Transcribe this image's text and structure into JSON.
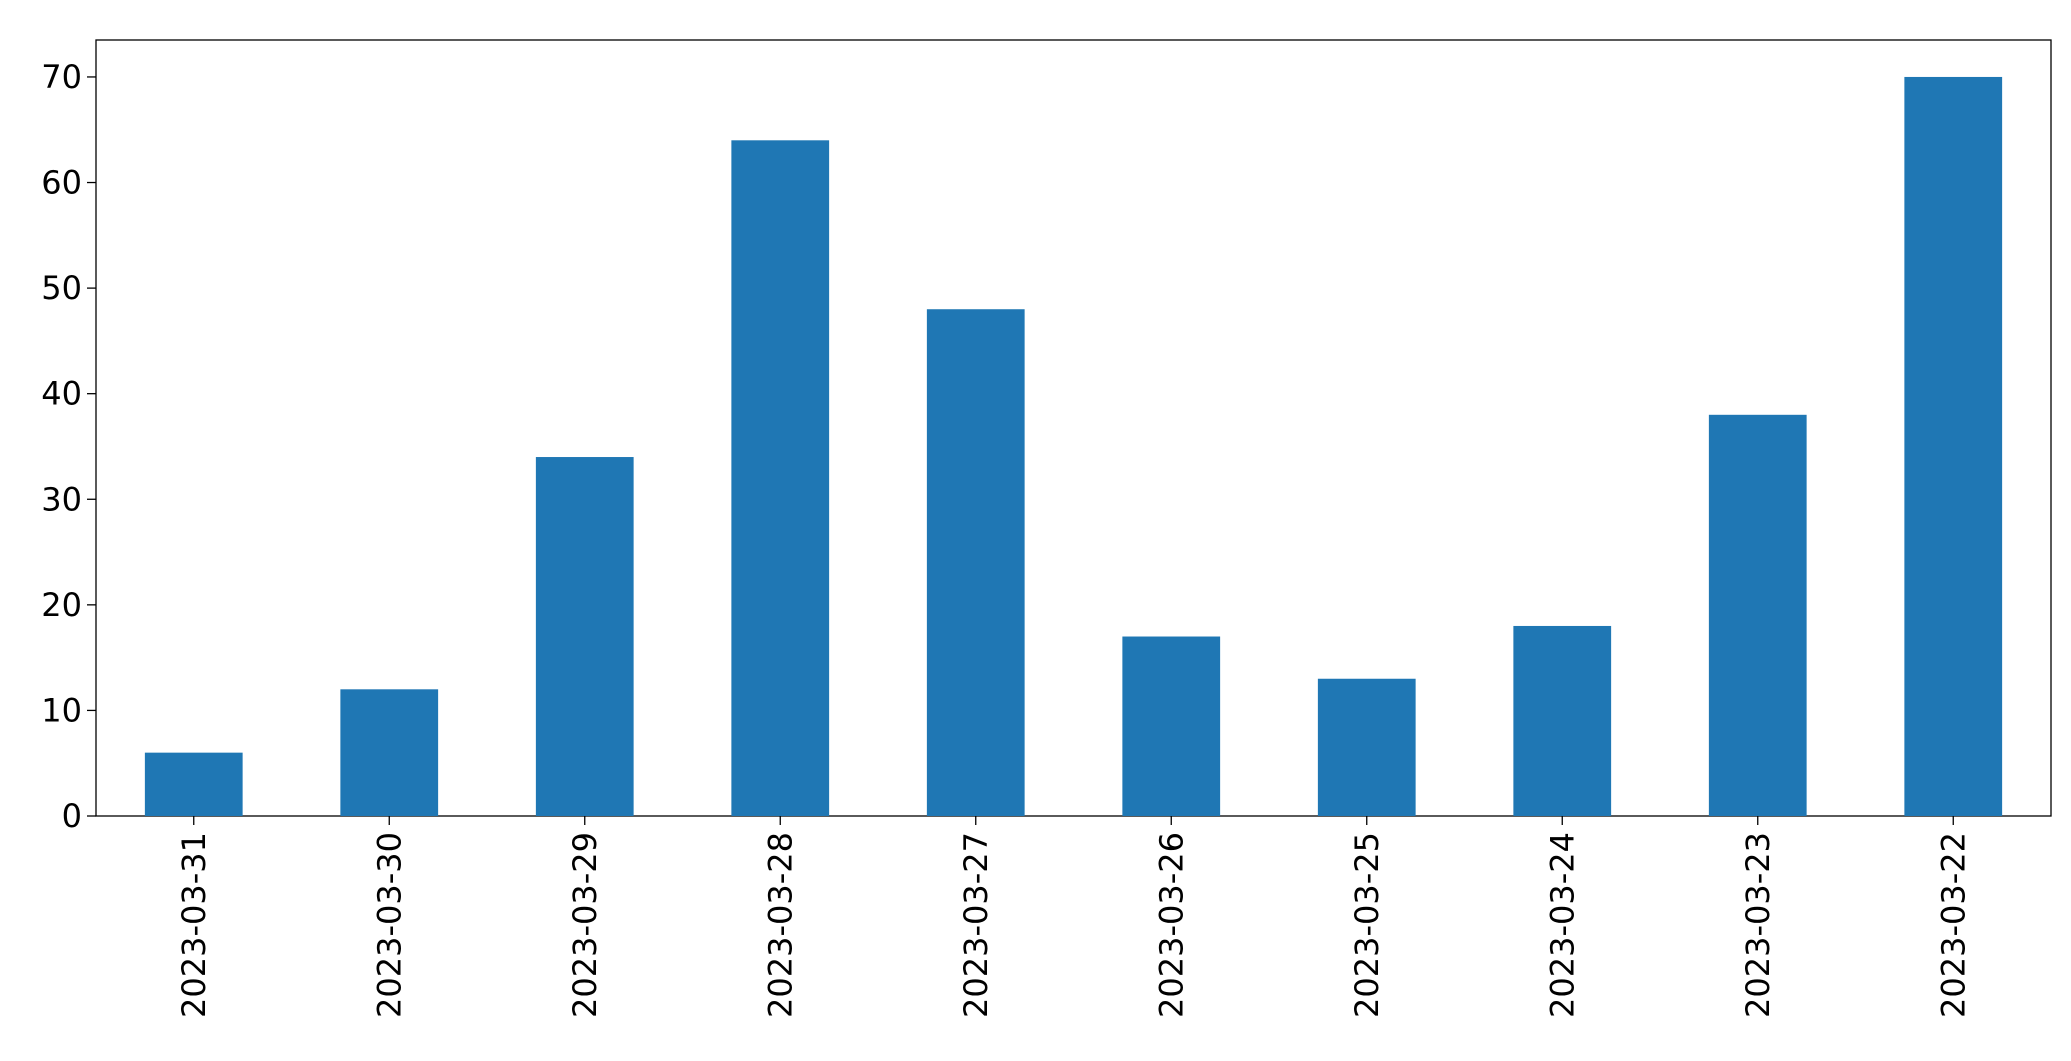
{
  "chart_data": {
    "type": "bar",
    "categories": [
      "2023-03-31",
      "2023-03-30",
      "2023-03-29",
      "2023-03-28",
      "2023-03-27",
      "2023-03-26",
      "2023-03-25",
      "2023-03-24",
      "2023-03-23",
      "2023-03-22"
    ],
    "values": [
      6,
      12,
      34,
      64,
      48,
      17,
      13,
      18,
      38,
      70
    ],
    "color": "#1f77b4",
    "ylim": [
      0,
      73.5
    ],
    "yticks": [
      0,
      10,
      20,
      30,
      40,
      50,
      60,
      70
    ],
    "grid": false
  }
}
